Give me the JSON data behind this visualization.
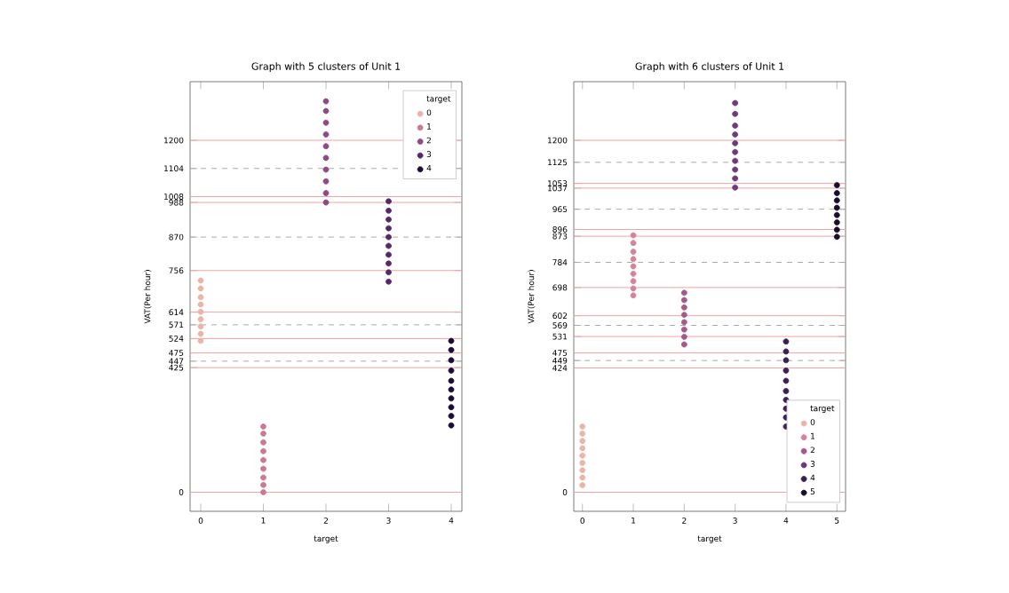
{
  "chart_data": [
    {
      "type": "scatter",
      "title": "Graph with 5 clusters of Unit 1",
      "xlabel": "target",
      "ylabel": "VAT(Per hour)",
      "legend_title": "target",
      "legend": "top right",
      "grid": false,
      "categories": [
        "0",
        "1",
        "2",
        "3",
        "4"
      ],
      "ylim": [
        -65,
        1400
      ],
      "yticks": [
        0,
        425,
        447,
        475,
        524,
        571,
        614,
        756,
        870,
        988,
        1008,
        1104,
        1200
      ],
      "series": [
        {
          "name": "0",
          "color": "#eab5a8",
          "x": [
            "0",
            "0",
            "0",
            "0",
            "0",
            "0",
            "0",
            "0",
            "0"
          ],
          "values": [
            516,
            540,
            565,
            590,
            615,
            640,
            665,
            695,
            722
          ]
        },
        {
          "name": "1",
          "color": "#c77b93",
          "x": [
            "1",
            "1",
            "1",
            "1",
            "1",
            "1",
            "1",
            "1",
            "1"
          ],
          "values": [
            0,
            25,
            50,
            80,
            110,
            140,
            170,
            200,
            224
          ]
        },
        {
          "name": "2",
          "color": "#8e4a84",
          "x": [
            "2",
            "2",
            "2",
            "2",
            "2",
            "2",
            "2",
            "2",
            "2",
            "2"
          ],
          "values": [
            988,
            1020,
            1060,
            1100,
            1140,
            1180,
            1220,
            1260,
            1300,
            1333
          ]
        },
        {
          "name": "3",
          "color": "#55286a",
          "x": [
            "3",
            "3",
            "3",
            "3",
            "3",
            "3",
            "3",
            "3",
            "3",
            "3"
          ],
          "values": [
            718,
            750,
            780,
            810,
            840,
            870,
            900,
            930,
            960,
            992
          ]
        },
        {
          "name": "4",
          "color": "#1d0c33",
          "x": [
            "4",
            "4",
            "4",
            "4",
            "4",
            "4",
            "4",
            "4",
            "4",
            "4"
          ],
          "values": [
            228,
            260,
            290,
            320,
            350,
            380,
            415,
            450,
            485,
            516
          ]
        }
      ],
      "ref_lines": [
        {
          "axis": "y",
          "value": 0,
          "color": "#f4a3a3",
          "line_style": "solid"
        },
        {
          "axis": "y",
          "value": 425,
          "color": "#f4a3a3",
          "line_style": "solid"
        },
        {
          "axis": "y",
          "value": 447,
          "color": "#aaaaaa",
          "line_style": "dashed"
        },
        {
          "axis": "y",
          "value": 475,
          "color": "#f4a3a3",
          "line_style": "solid"
        },
        {
          "axis": "y",
          "value": 524,
          "color": "#f4a3a3",
          "line_style": "solid"
        },
        {
          "axis": "y",
          "value": 571,
          "color": "#aaaaaa",
          "line_style": "dashed"
        },
        {
          "axis": "y",
          "value": 614,
          "color": "#f4a3a3",
          "line_style": "solid"
        },
        {
          "axis": "y",
          "value": 756,
          "color": "#f4a3a3",
          "line_style": "solid"
        },
        {
          "axis": "y",
          "value": 870,
          "color": "#aaaaaa",
          "line_style": "dashed"
        },
        {
          "axis": "y",
          "value": 988,
          "color": "#f4a3a3",
          "line_style": "solid"
        },
        {
          "axis": "y",
          "value": 1008,
          "color": "#f4a3a3",
          "line_style": "solid"
        },
        {
          "axis": "y",
          "value": 1104,
          "color": "#aaaaaa",
          "line_style": "dashed"
        },
        {
          "axis": "y",
          "value": 1200,
          "color": "#f4a3a3",
          "line_style": "solid"
        }
      ]
    },
    {
      "type": "scatter",
      "title": "Graph with 6 clusters of Unit 1",
      "xlabel": "target",
      "ylabel": "VAT(Per hour)",
      "legend_title": "target",
      "legend": "bottom right",
      "grid": false,
      "categories": [
        "0",
        "1",
        "2",
        "3",
        "4",
        "5"
      ],
      "ylim": [
        -65,
        1400
      ],
      "yticks": [
        0,
        424,
        449,
        475,
        531,
        569,
        602,
        698,
        784,
        873,
        896,
        965,
        1037,
        1053,
        1125,
        1200
      ],
      "series": [
        {
          "name": "0",
          "color": "#eab5a8",
          "x": [
            "0",
            "0",
            "0",
            "0",
            "0",
            "0",
            "0",
            "0",
            "0"
          ],
          "values": [
            24,
            50,
            75,
            100,
            125,
            150,
            175,
            200,
            224
          ]
        },
        {
          "name": "1",
          "color": "#d0859a",
          "x": [
            "1",
            "1",
            "1",
            "1",
            "1",
            "1",
            "1",
            "1",
            "1"
          ],
          "values": [
            671,
            695,
            720,
            745,
            770,
            795,
            820,
            850,
            876
          ]
        },
        {
          "name": "2",
          "color": "#a35a8b",
          "x": [
            "2",
            "2",
            "2",
            "2",
            "2",
            "2",
            "2",
            "2"
          ],
          "values": [
            504,
            530,
            555,
            580,
            605,
            630,
            655,
            680
          ]
        },
        {
          "name": "3",
          "color": "#6e3a7a",
          "x": [
            "3",
            "3",
            "3",
            "3",
            "3",
            "3",
            "3",
            "3",
            "3",
            "3"
          ],
          "values": [
            1039,
            1070,
            1100,
            1130,
            1160,
            1190,
            1220,
            1250,
            1290,
            1327
          ]
        },
        {
          "name": "4",
          "color": "#3c1f56",
          "x": [
            "4",
            "4",
            "4",
            "4",
            "4",
            "4",
            "4",
            "4",
            "4",
            "4"
          ],
          "values": [
            224,
            255,
            285,
            315,
            345,
            380,
            415,
            450,
            480,
            514
          ]
        },
        {
          "name": "5",
          "color": "#1b0c2e",
          "x": [
            "5",
            "5",
            "5",
            "5",
            "5",
            "5",
            "5",
            "5"
          ],
          "values": [
            871,
            895,
            920,
            945,
            970,
            995,
            1020,
            1047
          ]
        }
      ],
      "ref_lines": [
        {
          "axis": "y",
          "value": 0,
          "color": "#f4a3a3",
          "line_style": "solid"
        },
        {
          "axis": "y",
          "value": 424,
          "color": "#f4a3a3",
          "line_style": "solid"
        },
        {
          "axis": "y",
          "value": 449,
          "color": "#aaaaaa",
          "line_style": "dashed"
        },
        {
          "axis": "y",
          "value": 475,
          "color": "#f4a3a3",
          "line_style": "solid"
        },
        {
          "axis": "y",
          "value": 531,
          "color": "#f4a3a3",
          "line_style": "solid"
        },
        {
          "axis": "y",
          "value": 569,
          "color": "#aaaaaa",
          "line_style": "dashed"
        },
        {
          "axis": "y",
          "value": 602,
          "color": "#f4a3a3",
          "line_style": "solid"
        },
        {
          "axis": "y",
          "value": 698,
          "color": "#f4a3a3",
          "line_style": "solid"
        },
        {
          "axis": "y",
          "value": 784,
          "color": "#aaaaaa",
          "line_style": "dashed"
        },
        {
          "axis": "y",
          "value": 873,
          "color": "#f4a3a3",
          "line_style": "solid"
        },
        {
          "axis": "y",
          "value": 896,
          "color": "#f4a3a3",
          "line_style": "solid"
        },
        {
          "axis": "y",
          "value": 965,
          "color": "#aaaaaa",
          "line_style": "dashed"
        },
        {
          "axis": "y",
          "value": 1037,
          "color": "#f4a3a3",
          "line_style": "solid"
        },
        {
          "axis": "y",
          "value": 1053,
          "color": "#f4a3a3",
          "line_style": "solid"
        },
        {
          "axis": "y",
          "value": 1125,
          "color": "#aaaaaa",
          "line_style": "dashed"
        },
        {
          "axis": "y",
          "value": 1200,
          "color": "#f4a3a3",
          "line_style": "solid"
        }
      ]
    }
  ]
}
